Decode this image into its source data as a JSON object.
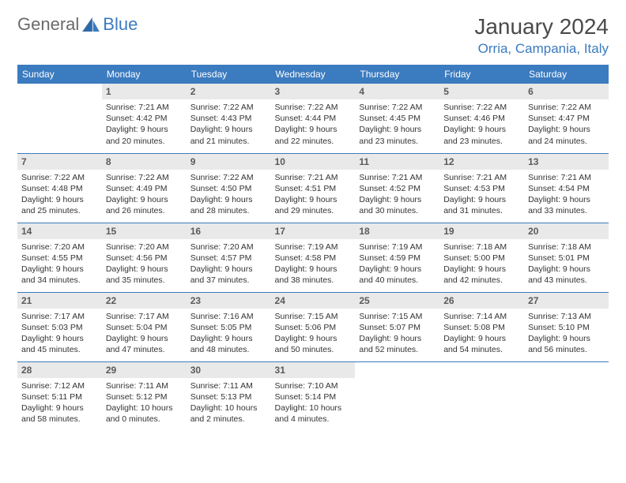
{
  "brand": {
    "part1": "General",
    "part2": "Blue"
  },
  "title": "January 2024",
  "location": "Orria, Campania, Italy",
  "colors": {
    "header_bg": "#3b7bbf",
    "header_text": "#ffffff",
    "daynum_bg": "#e9e9e9",
    "daynum_text": "#5a5a5a",
    "brand_gray": "#6a6a6a",
    "brand_blue": "#3b7bbf",
    "border": "#3b7bbf"
  },
  "layout": {
    "columns": 7,
    "rows": 5,
    "header_font_size": 12,
    "cell_font_size": 10.5
  },
  "weekdays": [
    "Sunday",
    "Monday",
    "Tuesday",
    "Wednesday",
    "Thursday",
    "Friday",
    "Saturday"
  ],
  "weeks": [
    [
      null,
      {
        "n": "1",
        "sr": "7:21 AM",
        "ss": "4:42 PM",
        "dl": "9 hours and 20 minutes."
      },
      {
        "n": "2",
        "sr": "7:22 AM",
        "ss": "4:43 PM",
        "dl": "9 hours and 21 minutes."
      },
      {
        "n": "3",
        "sr": "7:22 AM",
        "ss": "4:44 PM",
        "dl": "9 hours and 22 minutes."
      },
      {
        "n": "4",
        "sr": "7:22 AM",
        "ss": "4:45 PM",
        "dl": "9 hours and 23 minutes."
      },
      {
        "n": "5",
        "sr": "7:22 AM",
        "ss": "4:46 PM",
        "dl": "9 hours and 23 minutes."
      },
      {
        "n": "6",
        "sr": "7:22 AM",
        "ss": "4:47 PM",
        "dl": "9 hours and 24 minutes."
      }
    ],
    [
      {
        "n": "7",
        "sr": "7:22 AM",
        "ss": "4:48 PM",
        "dl": "9 hours and 25 minutes."
      },
      {
        "n": "8",
        "sr": "7:22 AM",
        "ss": "4:49 PM",
        "dl": "9 hours and 26 minutes."
      },
      {
        "n": "9",
        "sr": "7:22 AM",
        "ss": "4:50 PM",
        "dl": "9 hours and 28 minutes."
      },
      {
        "n": "10",
        "sr": "7:21 AM",
        "ss": "4:51 PM",
        "dl": "9 hours and 29 minutes."
      },
      {
        "n": "11",
        "sr": "7:21 AM",
        "ss": "4:52 PM",
        "dl": "9 hours and 30 minutes."
      },
      {
        "n": "12",
        "sr": "7:21 AM",
        "ss": "4:53 PM",
        "dl": "9 hours and 31 minutes."
      },
      {
        "n": "13",
        "sr": "7:21 AM",
        "ss": "4:54 PM",
        "dl": "9 hours and 33 minutes."
      }
    ],
    [
      {
        "n": "14",
        "sr": "7:20 AM",
        "ss": "4:55 PM",
        "dl": "9 hours and 34 minutes."
      },
      {
        "n": "15",
        "sr": "7:20 AM",
        "ss": "4:56 PM",
        "dl": "9 hours and 35 minutes."
      },
      {
        "n": "16",
        "sr": "7:20 AM",
        "ss": "4:57 PM",
        "dl": "9 hours and 37 minutes."
      },
      {
        "n": "17",
        "sr": "7:19 AM",
        "ss": "4:58 PM",
        "dl": "9 hours and 38 minutes."
      },
      {
        "n": "18",
        "sr": "7:19 AM",
        "ss": "4:59 PM",
        "dl": "9 hours and 40 minutes."
      },
      {
        "n": "19",
        "sr": "7:18 AM",
        "ss": "5:00 PM",
        "dl": "9 hours and 42 minutes."
      },
      {
        "n": "20",
        "sr": "7:18 AM",
        "ss": "5:01 PM",
        "dl": "9 hours and 43 minutes."
      }
    ],
    [
      {
        "n": "21",
        "sr": "7:17 AM",
        "ss": "5:03 PM",
        "dl": "9 hours and 45 minutes."
      },
      {
        "n": "22",
        "sr": "7:17 AM",
        "ss": "5:04 PM",
        "dl": "9 hours and 47 minutes."
      },
      {
        "n": "23",
        "sr": "7:16 AM",
        "ss": "5:05 PM",
        "dl": "9 hours and 48 minutes."
      },
      {
        "n": "24",
        "sr": "7:15 AM",
        "ss": "5:06 PM",
        "dl": "9 hours and 50 minutes."
      },
      {
        "n": "25",
        "sr": "7:15 AM",
        "ss": "5:07 PM",
        "dl": "9 hours and 52 minutes."
      },
      {
        "n": "26",
        "sr": "7:14 AM",
        "ss": "5:08 PM",
        "dl": "9 hours and 54 minutes."
      },
      {
        "n": "27",
        "sr": "7:13 AM",
        "ss": "5:10 PM",
        "dl": "9 hours and 56 minutes."
      }
    ],
    [
      {
        "n": "28",
        "sr": "7:12 AM",
        "ss": "5:11 PM",
        "dl": "9 hours and 58 minutes."
      },
      {
        "n": "29",
        "sr": "7:11 AM",
        "ss": "5:12 PM",
        "dl": "10 hours and 0 minutes."
      },
      {
        "n": "30",
        "sr": "7:11 AM",
        "ss": "5:13 PM",
        "dl": "10 hours and 2 minutes."
      },
      {
        "n": "31",
        "sr": "7:10 AM",
        "ss": "5:14 PM",
        "dl": "10 hours and 4 minutes."
      },
      null,
      null,
      null
    ]
  ]
}
